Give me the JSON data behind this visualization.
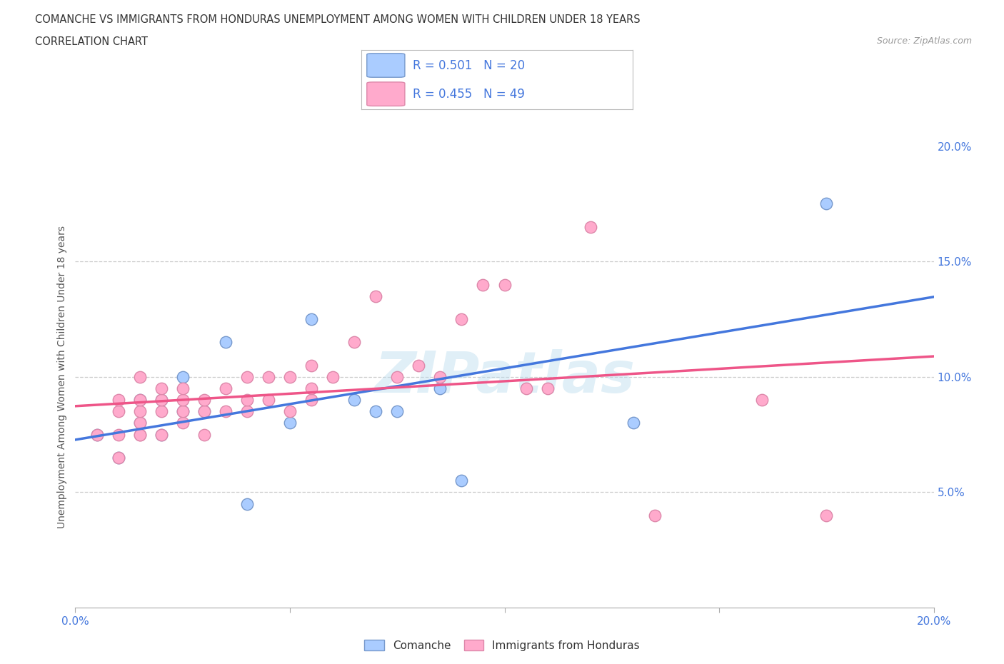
{
  "title_line1": "COMANCHE VS IMMIGRANTS FROM HONDURAS UNEMPLOYMENT AMONG WOMEN WITH CHILDREN UNDER 18 YEARS",
  "title_line2": "CORRELATION CHART",
  "source_text": "Source: ZipAtlas.com",
  "ylabel": "Unemployment Among Women with Children Under 18 years",
  "xlim": [
    0.0,
    0.2
  ],
  "ylim": [
    0.0,
    0.2
  ],
  "comanche_color": "#aaccff",
  "comanche_edge_color": "#7799cc",
  "honduras_color": "#ffaacc",
  "honduras_edge_color": "#dd88aa",
  "line_blue": "#4477dd",
  "line_pink": "#ee5588",
  "comanche_R": 0.501,
  "comanche_N": 20,
  "honduras_R": 0.455,
  "honduras_N": 49,
  "watermark_color": "#bbddee",
  "grid_color": "#cccccc",
  "background_color": "#ffffff",
  "tick_color": "#4477dd",
  "comanche_x": [
    0.005,
    0.01,
    0.015,
    0.015,
    0.02,
    0.02,
    0.025,
    0.025,
    0.03,
    0.035,
    0.04,
    0.05,
    0.055,
    0.065,
    0.07,
    0.075,
    0.085,
    0.09,
    0.13,
    0.175
  ],
  "comanche_y": [
    0.075,
    0.065,
    0.08,
    0.09,
    0.075,
    0.09,
    0.085,
    0.1,
    0.085,
    0.115,
    0.045,
    0.08,
    0.125,
    0.09,
    0.085,
    0.085,
    0.095,
    0.055,
    0.08,
    0.175
  ],
  "honduras_x": [
    0.005,
    0.01,
    0.01,
    0.01,
    0.01,
    0.015,
    0.015,
    0.015,
    0.015,
    0.015,
    0.015,
    0.02,
    0.02,
    0.02,
    0.02,
    0.025,
    0.025,
    0.025,
    0.025,
    0.03,
    0.03,
    0.03,
    0.035,
    0.035,
    0.04,
    0.04,
    0.04,
    0.045,
    0.045,
    0.05,
    0.05,
    0.055,
    0.055,
    0.055,
    0.06,
    0.065,
    0.07,
    0.075,
    0.08,
    0.085,
    0.09,
    0.095,
    0.1,
    0.105,
    0.11,
    0.12,
    0.135,
    0.16,
    0.175
  ],
  "honduras_y": [
    0.075,
    0.065,
    0.075,
    0.085,
    0.09,
    0.075,
    0.075,
    0.08,
    0.085,
    0.09,
    0.1,
    0.075,
    0.085,
    0.09,
    0.095,
    0.08,
    0.085,
    0.09,
    0.095,
    0.075,
    0.085,
    0.09,
    0.085,
    0.095,
    0.085,
    0.09,
    0.1,
    0.09,
    0.1,
    0.085,
    0.1,
    0.09,
    0.095,
    0.105,
    0.1,
    0.115,
    0.135,
    0.1,
    0.105,
    0.1,
    0.125,
    0.14,
    0.14,
    0.095,
    0.095,
    0.165,
    0.04,
    0.09,
    0.04
  ]
}
